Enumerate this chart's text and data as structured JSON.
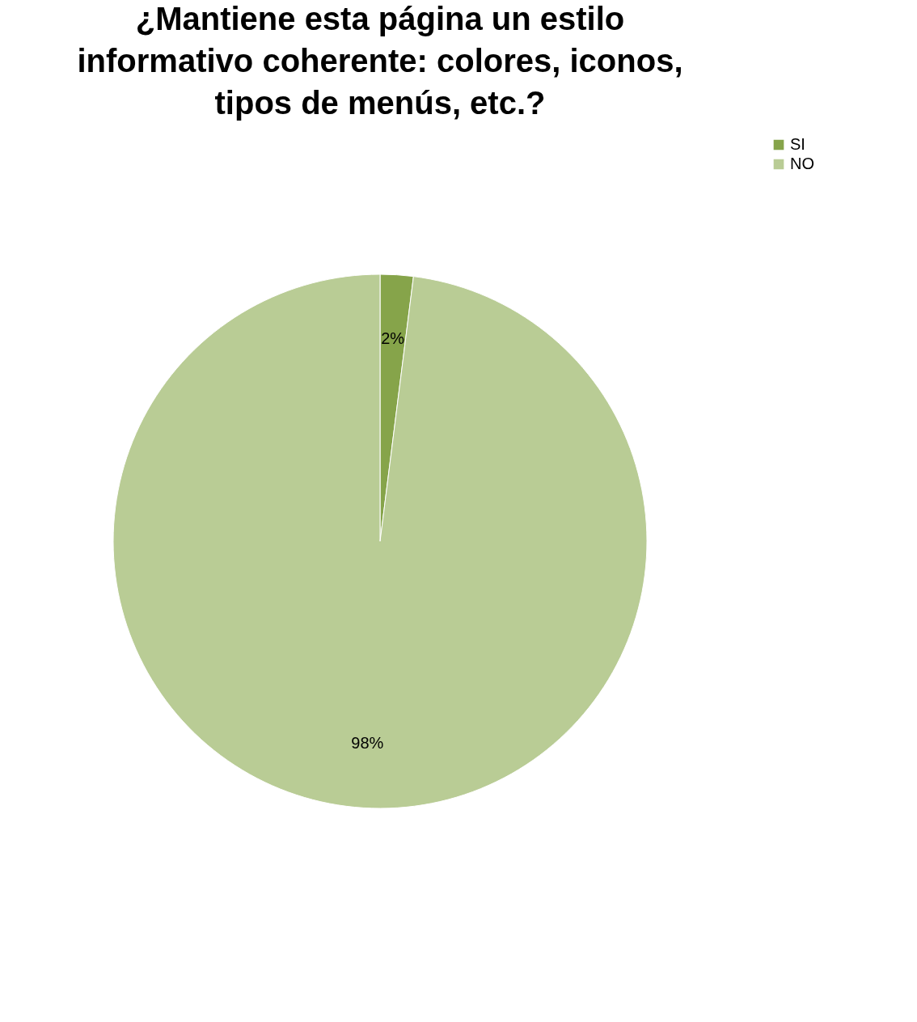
{
  "chart_data": {
    "type": "pie",
    "title": "¿Mantiene esta página un estilo informativo coherente: colores, iconos, tipos de menús, etc.?",
    "categories": [
      "SI",
      "NO"
    ],
    "values": [
      2,
      98
    ],
    "colors": [
      "#86a44a",
      "#b9cc95"
    ],
    "value_labels": [
      "2%",
      "98%"
    ],
    "legend": "right"
  }
}
